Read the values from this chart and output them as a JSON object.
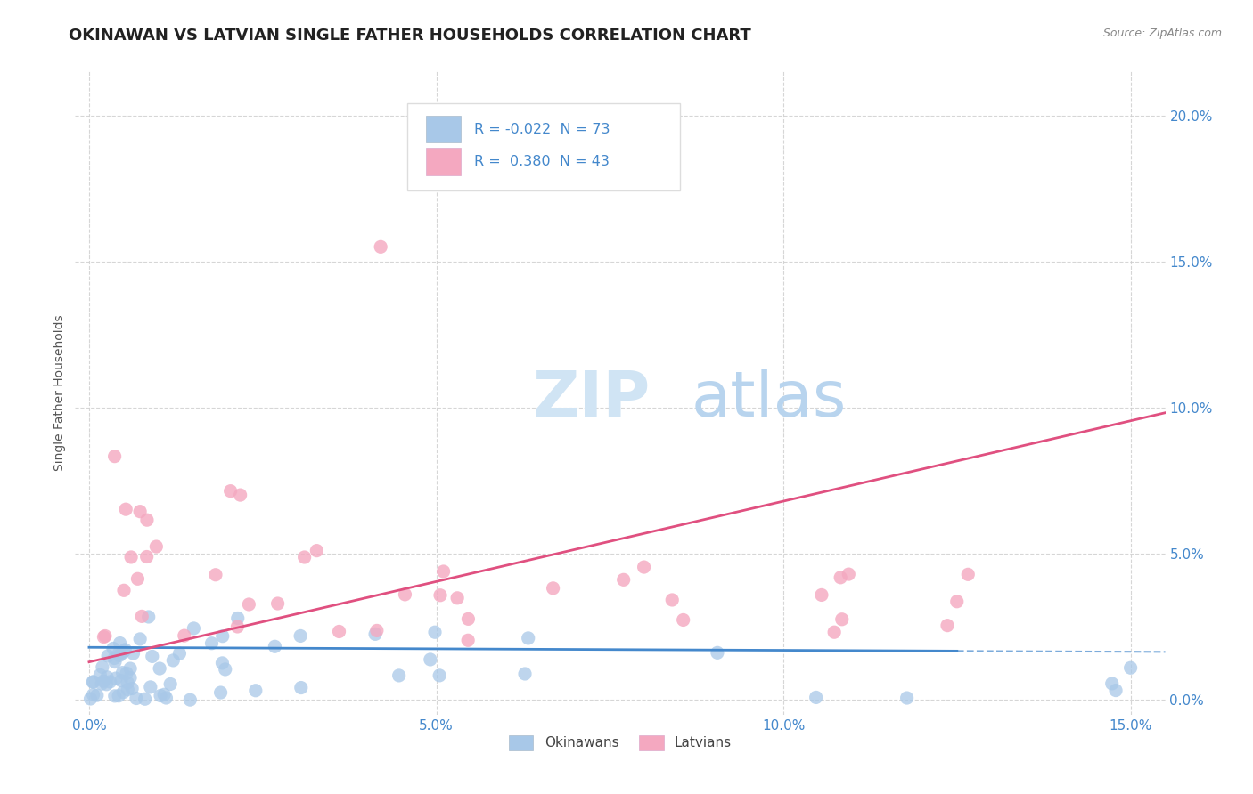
{
  "title": "OKINAWAN VS LATVIAN SINGLE FATHER HOUSEHOLDS CORRELATION CHART",
  "source_text": "Source: ZipAtlas.com",
  "watermark_zip": "ZIP",
  "watermark_atlas": "atlas",
  "ylabel": "Single Father Households",
  "legend_okinawan_label": "Okinawans",
  "legend_latvian_label": "Latvians",
  "R_okinawan": -0.022,
  "N_okinawan": 73,
  "R_latvian": 0.38,
  "N_latvian": 43,
  "color_okinawan": "#a8c8e8",
  "color_latvian": "#f4a8c0",
  "color_okinawan_line": "#4488cc",
  "color_latvian_line": "#e05080",
  "xlim": [
    -0.002,
    0.155
  ],
  "ylim": [
    -0.005,
    0.215
  ],
  "yticks": [
    0.0,
    0.05,
    0.1,
    0.15,
    0.2
  ],
  "xticks": [
    0.0,
    0.05,
    0.1,
    0.15
  ],
  "background_color": "#ffffff",
  "grid_color": "#cccccc",
  "title_fontsize": 13,
  "axis_label_fontsize": 10,
  "tick_label_fontsize": 11,
  "tick_color": "#4488cc",
  "watermark_fontsize_zip": 52,
  "watermark_fontsize_atlas": 52,
  "watermark_color": "#d0e4f4"
}
